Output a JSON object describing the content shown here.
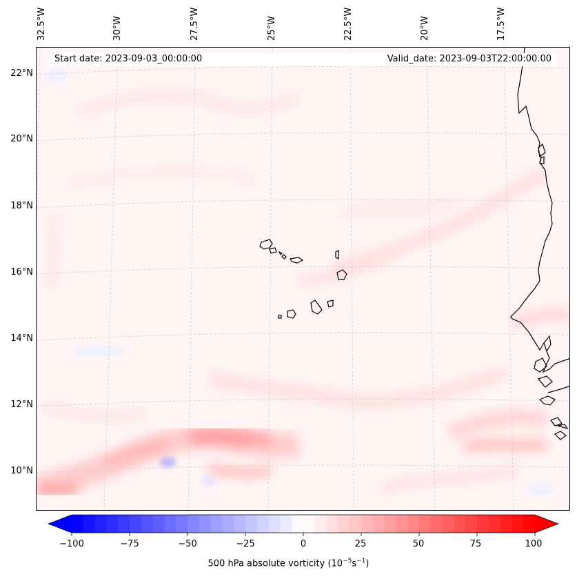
{
  "header": {
    "start_date": "Start date: 2023-09-03_00:00:00",
    "valid_date": "Valid_date: 2023-09-03T22:00:00.00"
  },
  "axes": {
    "lon_ticks": [
      "32.5°W",
      "30°W",
      "27.5°W",
      "25°W",
      "22.5°W",
      "20°W",
      "17.5°W"
    ],
    "lat_ticks": [
      "22°N",
      "20°N",
      "18°N",
      "16°N",
      "14°N",
      "12°N",
      "10°N"
    ]
  },
  "colorbar": {
    "title_prefix": "500 hPa absolute vorticity (10",
    "title_exp1": "−5",
    "title_mid": "s",
    "title_exp2": "−1",
    "title_suffix": ")",
    "ticks": [
      "−100",
      "−75",
      "−50",
      "−25",
      "0",
      "25",
      "50",
      "75",
      "100"
    ],
    "vmin": -100,
    "vmax": 100,
    "negative_color": "#0000ff",
    "positive_color": "#ff0000",
    "neutral_color": "#ffffff"
  },
  "map": {
    "background_color": "#fff6f6",
    "coastline_color": "#000000",
    "gridline_color": "#cccccc"
  }
}
